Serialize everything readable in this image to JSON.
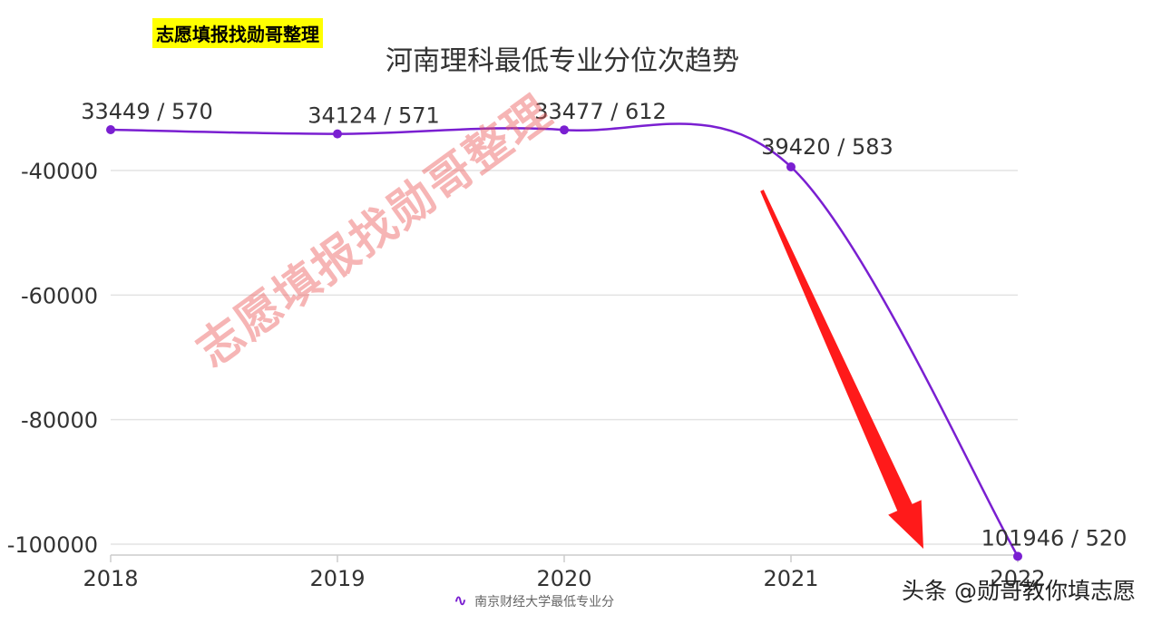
{
  "header_tag": "志愿填报找勋哥整理",
  "watermark": "志愿填报找勋哥整理",
  "credit": "头条 @勋哥教你填志愿",
  "chart_data": {
    "type": "line",
    "title": "河南理科最低专业分位次趋势",
    "categories": [
      "2018",
      "2019",
      "2020",
      "2021",
      "2022"
    ],
    "series": [
      {
        "name": "南京财经大学最低专业分",
        "values": [
          -33449,
          -34124,
          -33477,
          -39420,
          -101946
        ],
        "labels": [
          "33449 / 570",
          "34124 / 571",
          "33477 / 612",
          "39420 / 583",
          "101946 / 520"
        ],
        "color": "#7a1fd1"
      }
    ],
    "y_ticks": [
      -40000,
      -60000,
      -80000,
      -100000
    ],
    "ylim": [
      -101946,
      -33449
    ],
    "grid": true,
    "legend_position": "bottom",
    "annotation": "red arrow pointing down toward 2022"
  },
  "colors": {
    "line": "#7a1fd1",
    "arrow": "#ff1a1a",
    "grid": "#e3e3e3",
    "highlight": "#ffff00"
  }
}
